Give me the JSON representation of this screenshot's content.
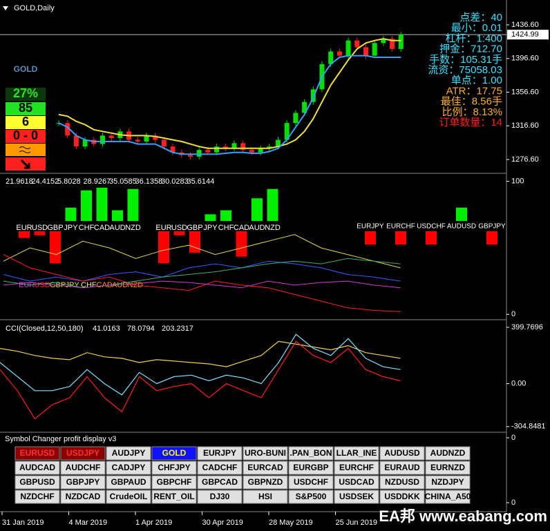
{
  "main": {
    "title": "GOLD,Daily",
    "ylim": [
      1261,
      1464.5
    ],
    "yticks": [
      {
        "value": 1436.6,
        "label": "1436.60"
      },
      {
        "value": 1396.6,
        "label": "1396.60"
      },
      {
        "value": 1356.6,
        "label": "1356.60"
      },
      {
        "value": 1316.6,
        "label": "1316.60"
      },
      {
        "value": 1276.6,
        "label": "1276.60"
      }
    ],
    "current": {
      "value": 1424.99,
      "label": "1424.99"
    },
    "close": [
      1320,
      1305,
      1292,
      1300,
      1295,
      1305,
      1302,
      1310,
      1300,
      1298,
      1305,
      1300,
      1292,
      1285,
      1282,
      1280,
      1288,
      1285,
      1292,
      1290,
      1296,
      1288,
      1285,
      1290,
      1292,
      1300,
      1320,
      1332,
      1345,
      1360,
      1390,
      1405,
      1400,
      1418,
      1410,
      1400,
      1415,
      1420,
      1408,
      1425
    ],
    "ma_yellow": [
      1330,
      1328,
      1322,
      1318,
      1312,
      1310,
      1308,
      1306,
      1305,
      1305,
      1305,
      1304,
      1302,
      1300,
      1298,
      1295,
      1292,
      1290,
      1290,
      1290,
      1290,
      1290,
      1290,
      1290,
      1290,
      1292,
      1295,
      1300,
      1310,
      1325,
      1345,
      1365,
      1380,
      1395,
      1408,
      1415,
      1418,
      1420,
      1418,
      1418
    ],
    "ma_blue": [
      1320,
      1315,
      1305,
      1300,
      1298,
      1298,
      1298,
      1298,
      1298,
      1295,
      1295,
      1295,
      1290,
      1285,
      1283,
      1283,
      1283,
      1283,
      1283,
      1284,
      1285,
      1285,
      1284,
      1284,
      1286,
      1290,
      1300,
      1315,
      1330,
      1350,
      1375,
      1390,
      1398,
      1400,
      1400,
      1400,
      1398,
      1398,
      1398,
      1398
    ],
    "badge": {
      "symbol": "GOLD",
      "percent": "27%",
      "score": "85",
      "count": "6",
      "pair": "0 - 0"
    },
    "info": [
      "点差：40",
      "最小：0.01",
      "杠杆：1:400",
      "押金：712.70",
      "手数：105.31手",
      "流资：75058.03",
      "单点：1.00",
      "ATR：17.75",
      "最佳：8.56手",
      "比例：8.13%",
      "订单数量：14"
    ]
  },
  "strength": {
    "header": [
      21.9618,
      24.4152,
      5.8028,
      28.9267,
      35.0585,
      36.1358,
      30.0283,
      35.6144
    ],
    "ylim": [
      -4,
      105
    ],
    "yticks": [
      100,
      0
    ],
    "groups": [
      {
        "labels": [
          "EUR",
          "USD",
          "GBP",
          "JPY",
          "CHF",
          "CAD",
          "AUD",
          "NZD"
        ],
        "values": [
          -5,
          -3,
          -24,
          10,
          23,
          25,
          8,
          24
        ]
      },
      {
        "labels": [
          "EUR",
          "USD",
          "GBP",
          "JPY",
          "CHF",
          "CAD",
          "AUD",
          "NZD"
        ],
        "values": [
          -24,
          -3,
          -16,
          5,
          8,
          -19,
          17,
          24
        ]
      }
    ],
    "pairs": {
      "labels": [
        "EURJPY",
        "EURCHF",
        "USDCHF",
        "AUDUSD",
        "GBPJPY"
      ],
      "values": [
        -10,
        -10,
        -10,
        10,
        -10
      ]
    },
    "lines": [
      {
        "color": "#e6d84a",
        "values": [
          40,
          50,
          45,
          55,
          50,
          42,
          48,
          52,
          45,
          50,
          55,
          60,
          50,
          45,
          40,
          35
        ]
      },
      {
        "color": "#3b5bff",
        "values": [
          30,
          25,
          28,
          25,
          30,
          32,
          28,
          35,
          38,
          35,
          40,
          38,
          35,
          30,
          28,
          25
        ]
      },
      {
        "color": "#ff2020",
        "values": [
          45,
          35,
          30,
          25,
          28,
          22,
          20,
          18,
          25,
          22,
          20,
          15,
          10,
          5,
          3,
          2
        ]
      },
      {
        "color": "#3cb371",
        "values": [
          25,
          22,
          24,
          20,
          22,
          25,
          28,
          30,
          32,
          35,
          38,
          40,
          38,
          42,
          40,
          38
        ]
      },
      {
        "color": "#d040d0",
        "values": [
          22,
          24,
          22,
          20,
          22,
          23,
          25,
          24,
          22,
          20,
          25,
          22,
          24,
          25,
          22,
          20
        ]
      }
    ]
  },
  "cci": {
    "title": "CCI(Closed,12,50,180)",
    "header": [
      41.0163,
      78.0794,
      203.2317
    ],
    "ylim": [
      -345,
      439
    ],
    "yticks": [
      399.7696,
      {
        "value": 0,
        "label": "0.00"
      },
      -304.8481
    ],
    "lines": [
      {
        "color": "#f0d050",
        "values": [
          250,
          230,
          200,
          180,
          170,
          220,
          190,
          180,
          150,
          170,
          160,
          150,
          140,
          120,
          160,
          200,
          300,
          280,
          260,
          240,
          270,
          220,
          200,
          180
        ]
      },
      {
        "color": "#ff2020",
        "values": [
          100,
          -50,
          -250,
          -150,
          -100,
          50,
          -100,
          -200,
          50,
          -50,
          -20,
          0,
          -100,
          0,
          -50,
          -100,
          100,
          300,
          200,
          150,
          250,
          100,
          50,
          20
        ]
      },
      {
        "color": "#7fe0ff",
        "values": [
          150,
          50,
          -50,
          -50,
          -20,
          100,
          0,
          -80,
          80,
          0,
          50,
          60,
          20,
          60,
          40,
          0,
          150,
          350,
          250,
          200,
          320,
          180,
          120,
          100
        ]
      }
    ]
  },
  "changer": {
    "title": "Symbol Changer profit display v3",
    "yticks": [
      0,
      0
    ],
    "buttons": [
      [
        "EURUSD",
        "USDJPY",
        "AUDJPY",
        "GOLD",
        "EURJPY",
        "URO-BUNI",
        ".PAN_BON",
        "LLAR_INE",
        "AUDUSD",
        "AUDNZD"
      ],
      [
        "AUDCAD",
        "AUDCHF",
        "CADJPY",
        "CHFJPY",
        "CADCHF",
        "EURCAD",
        "EURGBP",
        "EURCHF",
        "EURAUD",
        "EURNZD"
      ],
      [
        "GBPUSD",
        "GBPJPY",
        "GBPAUD",
        "GBPCHF",
        "GBPCAD",
        "GBPNZD",
        "USDCHF",
        "USDCAD",
        "NZDUSD",
        "NZDJPY"
      ],
      [
        "NZDCHF",
        "NZDCAD",
        "CrudeOIL",
        "RENT_OIL",
        "DJ30",
        "HSI",
        "S&P500",
        "USDSEK",
        "USDDKK",
        "CHINA_A50"
      ]
    ]
  },
  "dates": [
    "31 Jan 2019",
    "4 Mar 2019",
    "1 Apr 2019",
    "30 Apr 2019",
    "28 May 2019",
    "25 Jun 2019"
  ],
  "watermark": "EA邦 www.eabang.com"
}
